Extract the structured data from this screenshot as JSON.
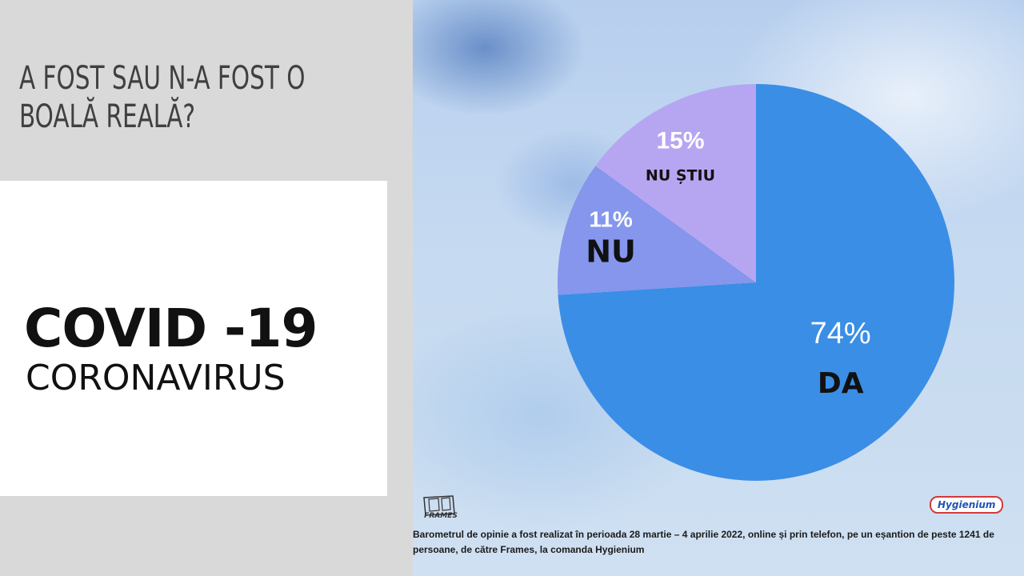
{
  "question": "A FOST SAU N-A FOST O BOALĂ REALĂ?",
  "card": {
    "title": "COVID -19",
    "subtitle": "CORONAVIRUS"
  },
  "chart_data": {
    "type": "pie",
    "title": "",
    "slices": [
      {
        "label": "DA",
        "value": 74,
        "value_label": "74%",
        "color": "#3a8ee6"
      },
      {
        "label": "NU",
        "value": 11,
        "value_label": "11%",
        "color": "#8596ec"
      },
      {
        "label": "NU ȘTIU",
        "value": 15,
        "value_label": "15%",
        "color": "#b6a6f2"
      }
    ],
    "start_angle_deg": 0,
    "direction": "clockwise",
    "legend": "none"
  },
  "logos": {
    "frames": "FRAMES",
    "hygienium": "Hygienium"
  },
  "footnote": "Barometrul de opinie a fost realizat în perioada 28 martie – 4 aprilie 2022, online și prin telefon, pe un eșantion de peste 1241 de persoane, de către Frames, la comanda Hygienium"
}
